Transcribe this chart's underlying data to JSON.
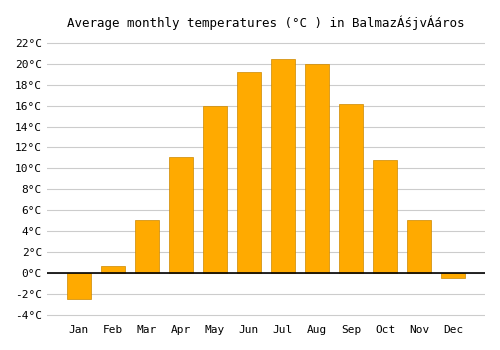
{
  "title": "Average monthly temperatures (°C ) in BalmazÃ©jvÃ¡ros",
  "title_display": "Average monthly temperatures (°C ) in BalmazÁśjvÁáros",
  "months": [
    "Jan",
    "Feb",
    "Mar",
    "Apr",
    "May",
    "Jun",
    "Jul",
    "Aug",
    "Sep",
    "Oct",
    "Nov",
    "Dec"
  ],
  "values": [
    -2.5,
    0.7,
    5.1,
    11.1,
    16.0,
    19.2,
    20.5,
    20.0,
    16.2,
    10.8,
    5.1,
    -0.5
  ],
  "bar_color": "#FFAA00",
  "bar_color_pos": "#FFAA00",
  "bar_color_neg": "#FFAA00",
  "edge_color": "#CC8800",
  "background_color": "#ffffff",
  "grid_color": "#cccccc",
  "ylim": [
    -4.5,
    22.5
  ],
  "yticks": [
    -4,
    -2,
    0,
    2,
    4,
    6,
    8,
    10,
    12,
    14,
    16,
    18,
    20,
    22
  ],
  "figsize": [
    5.0,
    3.5
  ],
  "dpi": 100
}
